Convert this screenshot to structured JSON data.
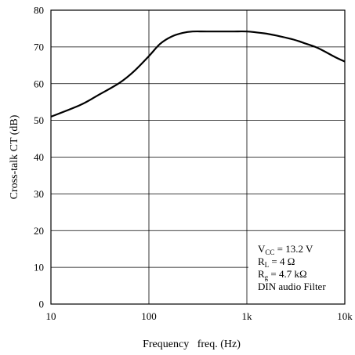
{
  "chart_data": {
    "type": "line",
    "xlabel": "Frequency   freq. (Hz)",
    "ylabel": "Cross-talk   CT (dB)",
    "x_scale": "log",
    "xlim": [
      10,
      10000
    ],
    "ylim": [
      0,
      80
    ],
    "x_ticks": [
      10,
      100,
      1000,
      10000
    ],
    "x_tick_labels": [
      "10",
      "100",
      "1k",
      "10k"
    ],
    "y_ticks": [
      0,
      10,
      20,
      30,
      40,
      50,
      60,
      70,
      80
    ],
    "y_tick_labels": [
      "0",
      "10",
      "20",
      "30",
      "40",
      "50",
      "60",
      "70",
      "80"
    ],
    "grid": true,
    "series": [
      {
        "x": [
          10,
          20,
          30,
          50,
          70,
          100,
          130,
          170,
          220,
          280,
          400,
          700,
          1000,
          1500,
          2000,
          3000,
          4000,
          5000,
          6000,
          8000,
          10000
        ],
        "y": [
          51,
          54.2,
          56.8,
          60.2,
          63.3,
          67.5,
          70.8,
          72.8,
          73.8,
          74.2,
          74.2,
          74.2,
          74.2,
          73.7,
          73.1,
          72.0,
          70.9,
          70.0,
          69.0,
          67.2,
          66.0
        ]
      }
    ],
    "annotation": {
      "lines": [
        {
          "main": "V",
          "sub": "CC",
          "rest": " = 13.2 V"
        },
        {
          "main": "R",
          "sub": "L",
          "rest": " = 4 Ω"
        },
        {
          "main": "R",
          "sub": "g",
          "rest": " = 4.7 kΩ"
        },
        {
          "main": "DIN audio Filter",
          "sub": "",
          "rest": ""
        }
      ]
    }
  }
}
